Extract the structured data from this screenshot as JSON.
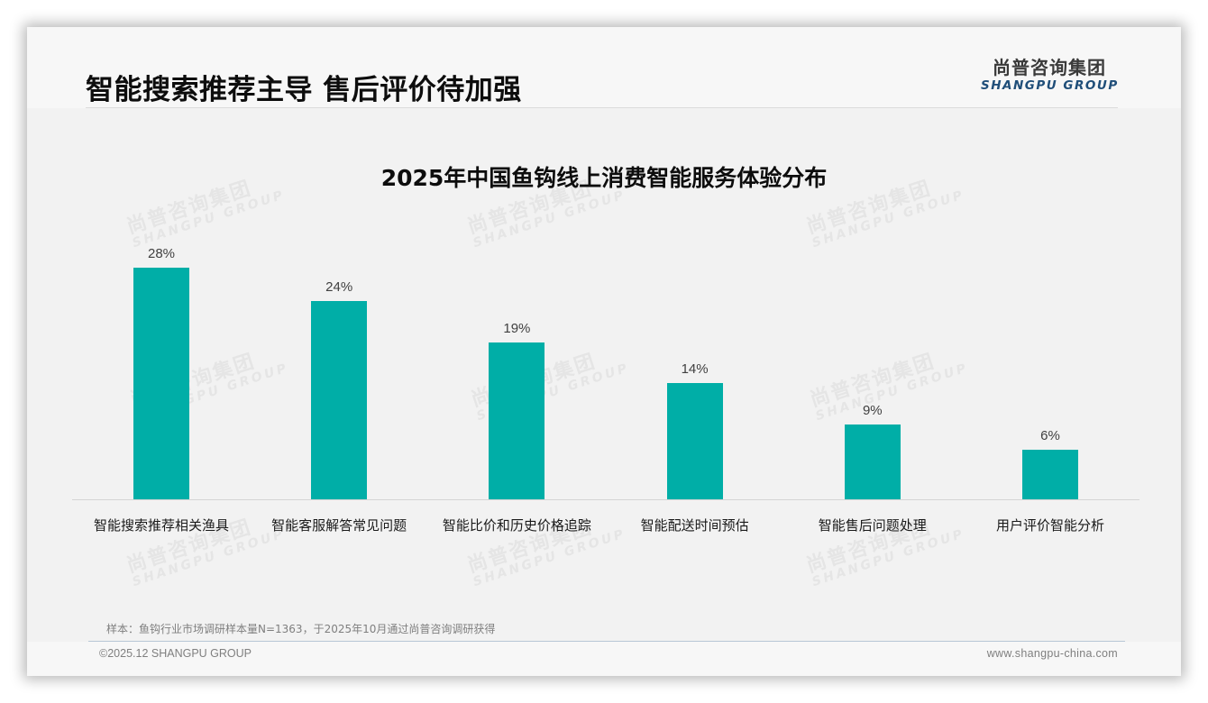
{
  "header": {
    "title": "智能搜索推荐主导 售后评价待加强",
    "logo_cn": "尚普咨询集团",
    "logo_en": "SHANGPU GROUP"
  },
  "watermark": {
    "cn": "尚普咨询集团",
    "en": "SHANGPU GROUP"
  },
  "colors": {
    "bar": "#00aea7",
    "logo_en": "#1f4e79",
    "background": "#f2f2f2"
  },
  "chart_data": {
    "type": "bar",
    "title": "2025年中国鱼钩线上消费智能服务体验分布",
    "xlabel": "",
    "ylabel": "",
    "ylim": [
      0,
      30
    ],
    "grid": false,
    "legend": null,
    "categories": [
      "智能搜索推荐相关渔具",
      "智能客服解答常见问题",
      "智能比价和历史价格追踪",
      "智能配送时间预估",
      "智能售后问题处理",
      "用户评价智能分析"
    ],
    "values": [
      28,
      24,
      19,
      14,
      9,
      6
    ],
    "value_labels": [
      "28%",
      "24%",
      "19%",
      "14%",
      "9%",
      "6%"
    ],
    "unit": "%"
  },
  "footer": {
    "note": "样本：鱼钩行业市场调研样本量N=1363，于2025年10月通过尚普咨询调研获得",
    "copyright": "©2025.12 SHANGPU GROUP",
    "website": "www.shangpu-china.com"
  }
}
